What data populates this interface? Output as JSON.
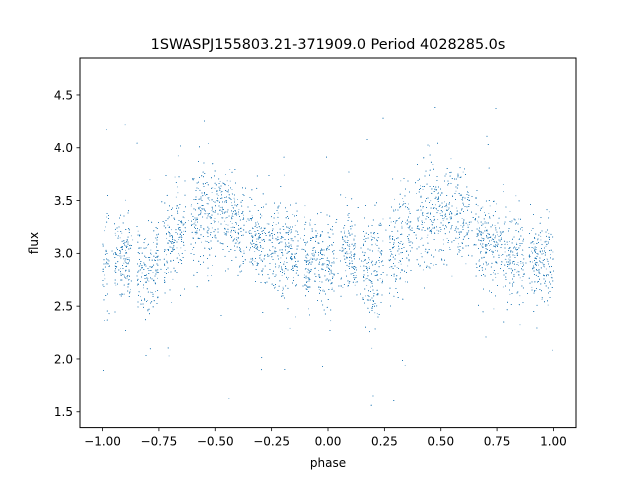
{
  "chart_data": {
    "type": "scatter",
    "title": "1SWASPJ155803.21-371909.0 Period 4028285.0s",
    "xlabel": "phase",
    "ylabel": "flux",
    "xlim": [
      -1.1,
      1.1
    ],
    "ylim": [
      1.35,
      4.85
    ],
    "x_ticks": [
      -1.0,
      -0.75,
      -0.5,
      -0.25,
      0.0,
      0.25,
      0.5,
      0.75,
      1.0
    ],
    "x_tick_labels": [
      "−1.00",
      "−0.75",
      "−0.50",
      "−0.25",
      "0.00",
      "0.25",
      "0.50",
      "0.75",
      "1.00"
    ],
    "y_ticks": [
      1.5,
      2.0,
      2.5,
      3.0,
      3.5,
      4.0,
      4.5
    ],
    "y_tick_labels": [
      "1.5",
      "2.0",
      "2.5",
      "3.0",
      "3.5",
      "4.0",
      "4.5"
    ],
    "grid": false,
    "legend": "none",
    "marker_color": "#1f77b4",
    "n_points_estimate": 14000,
    "phase_profile": [
      {
        "phase": -1.0,
        "mean_flux": 2.9,
        "spread": 0.35
      },
      {
        "phase": -0.9,
        "mean_flux": 3.0,
        "spread": 0.25
      },
      {
        "phase": -0.8,
        "mean_flux": 2.8,
        "spread": 0.3
      },
      {
        "phase": -0.7,
        "mean_flux": 3.1,
        "spread": 0.3
      },
      {
        "phase": -0.6,
        "mean_flux": 3.3,
        "spread": 0.3
      },
      {
        "phase": -0.5,
        "mean_flux": 3.4,
        "spread": 0.3
      },
      {
        "phase": -0.4,
        "mean_flux": 3.3,
        "spread": 0.28
      },
      {
        "phase": -0.3,
        "mean_flux": 3.1,
        "spread": 0.25
      },
      {
        "phase": -0.2,
        "mean_flux": 3.0,
        "spread": 0.3
      },
      {
        "phase": -0.1,
        "mean_flux": 2.95,
        "spread": 0.25
      },
      {
        "phase": 0.0,
        "mean_flux": 2.9,
        "spread": 0.3
      },
      {
        "phase": 0.1,
        "mean_flux": 3.0,
        "spread": 0.25
      },
      {
        "phase": 0.2,
        "mean_flux": 2.8,
        "spread": 0.3
      },
      {
        "phase": 0.3,
        "mean_flux": 3.1,
        "spread": 0.3
      },
      {
        "phase": 0.4,
        "mean_flux": 3.3,
        "spread": 0.3
      },
      {
        "phase": 0.5,
        "mean_flux": 3.4,
        "spread": 0.3
      },
      {
        "phase": 0.6,
        "mean_flux": 3.3,
        "spread": 0.28
      },
      {
        "phase": 0.7,
        "mean_flux": 3.1,
        "spread": 0.25
      },
      {
        "phase": 0.8,
        "mean_flux": 3.0,
        "spread": 0.3
      },
      {
        "phase": 0.9,
        "mean_flux": 2.95,
        "spread": 0.25
      },
      {
        "phase": 1.0,
        "mean_flux": 2.9,
        "spread": 0.3
      }
    ],
    "data_gaps_phase": [
      -0.96,
      -0.86,
      -0.74,
      -0.62,
      -0.36,
      -0.12,
      0.04,
      0.14,
      0.26,
      0.38,
      0.64,
      0.88
    ]
  }
}
